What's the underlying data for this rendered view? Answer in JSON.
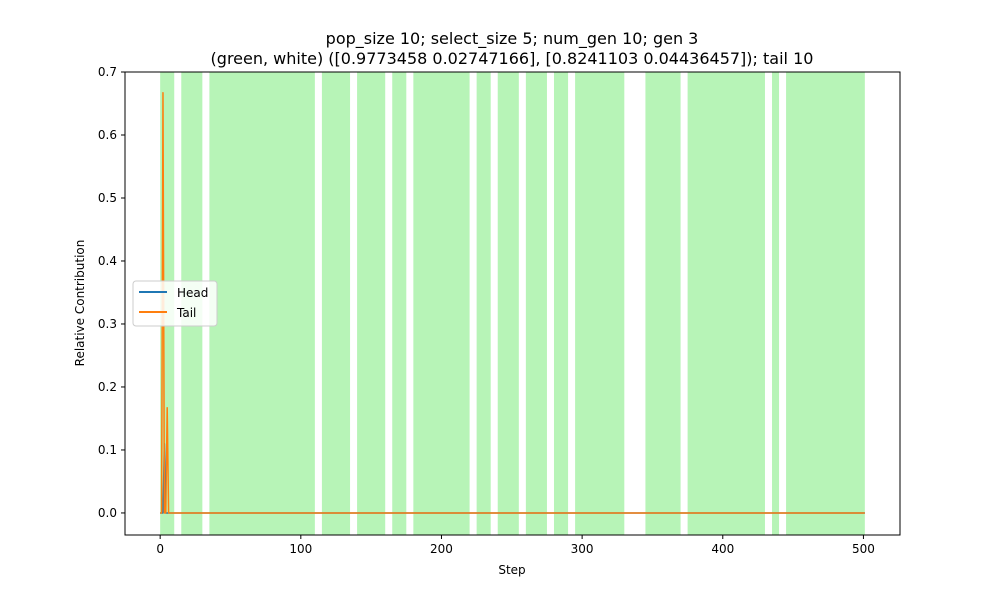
{
  "chart_data": {
    "type": "line",
    "title_line1": "pop_size 10; select_size 5; num_gen 10; gen 3",
    "title_line2": "(green, white) ([0.9773458  0.02747166], [0.8241103  0.04436457]); tail 10",
    "xlabel": "Step",
    "ylabel": "Relative Contribution",
    "xlim": [
      -25,
      526
    ],
    "ylim": [
      -0.035,
      0.7
    ],
    "xticks": [
      0,
      100,
      200,
      300,
      400,
      500
    ],
    "yticks": [
      0.0,
      0.1,
      0.2,
      0.3,
      0.4,
      0.5,
      0.6,
      0.7
    ],
    "ytick_labels": [
      "0.0",
      "0.1",
      "0.2",
      "0.3",
      "0.4",
      "0.5",
      "0.6",
      "0.7"
    ],
    "grid": false,
    "legend": {
      "placement": "center-left",
      "entries": [
        "Head",
        "Tail"
      ]
    },
    "colors": {
      "head": "#1f77b4",
      "tail": "#ff7f0e",
      "band": "#90ee90"
    },
    "green_bands": [
      [
        0,
        10
      ],
      [
        15,
        30
      ],
      [
        35,
        110
      ],
      [
        115,
        135
      ],
      [
        140,
        160
      ],
      [
        165,
        175
      ],
      [
        180,
        220
      ],
      [
        225,
        235
      ],
      [
        240,
        255
      ],
      [
        260,
        275
      ],
      [
        280,
        290
      ],
      [
        295,
        330
      ],
      [
        345,
        370
      ],
      [
        375,
        430
      ],
      [
        435,
        440
      ],
      [
        445,
        501
      ]
    ],
    "series": [
      {
        "name": "Head",
        "x": [
          0,
          1,
          2,
          3,
          4,
          5,
          6,
          7,
          501
        ],
        "values": [
          0,
          0,
          0,
          0.11,
          0,
          0,
          0,
          0,
          0
        ]
      },
      {
        "name": "Tail",
        "x": [
          0,
          1,
          2,
          3,
          4,
          5,
          6,
          7,
          501
        ],
        "values": [
          0,
          0,
          0.667,
          0,
          0,
          0.167,
          0,
          0,
          0
        ]
      }
    ]
  }
}
